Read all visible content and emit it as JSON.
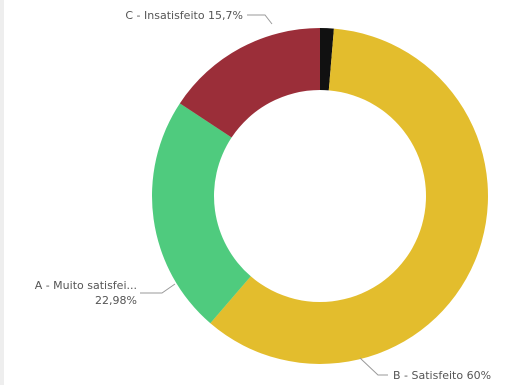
{
  "chart_data": {
    "type": "pie",
    "donut": true,
    "title": "",
    "start_angle_deg": -90,
    "segments": [
      {
        "name": "Black segment (unlabeled)",
        "value": 1.32,
        "color": "#111111",
        "label": ""
      },
      {
        "name": "B - Satisfeito",
        "value": 60.0,
        "color": "#E3BD2D",
        "label": "B - Satisfeito 60%"
      },
      {
        "name": "A - Muito satisfeito",
        "value": 22.98,
        "color": "#4FCB7E",
        "label_line1": "A - Muito satisfei...",
        "label_line2": "22,98%"
      },
      {
        "name": "C - Insatisfeito",
        "value": 15.7,
        "color": "#9B2E39",
        "label": "C - Insatisfeito 15,7%"
      }
    ],
    "legend": "none"
  }
}
